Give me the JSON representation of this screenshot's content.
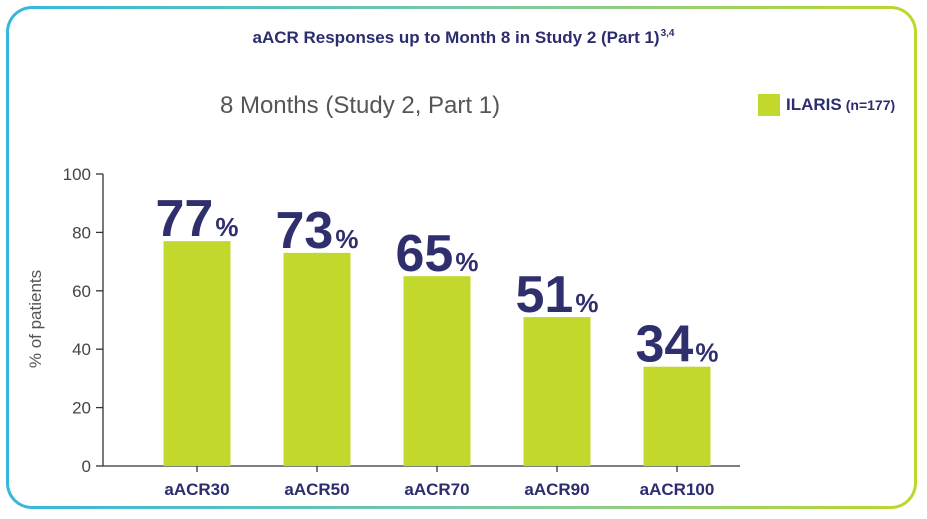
{
  "chart_data": {
    "type": "bar",
    "title": "aACR Responses up to Month 8 in Study 2 (Part 1)",
    "title_refs": "3,4",
    "subtitle": "8 Months (Study 2, Part 1)",
    "xlabel": "",
    "ylabel": "% of patients",
    "ylim": [
      0,
      100
    ],
    "yticks": [
      0,
      20,
      40,
      60,
      80,
      100
    ],
    "grid": false,
    "legend_position": "top-right",
    "categories": [
      "aACR30",
      "aACR50",
      "aACR70",
      "aACR90",
      "aACR100"
    ],
    "series": [
      {
        "name": "ILARIS",
        "name_suffix": "(n=177)",
        "values": [
          77,
          73,
          65,
          51,
          34
        ],
        "data_labels": [
          "77",
          "73",
          "65",
          "51",
          "34"
        ],
        "data_label_unit": "%",
        "color": "#c3d82d"
      }
    ]
  },
  "colors": {
    "bar": "#c3d82d",
    "label_text": "#2f2f6e",
    "border_gradient_start": "#35b8dc",
    "border_gradient_end": "#bcd82a"
  }
}
